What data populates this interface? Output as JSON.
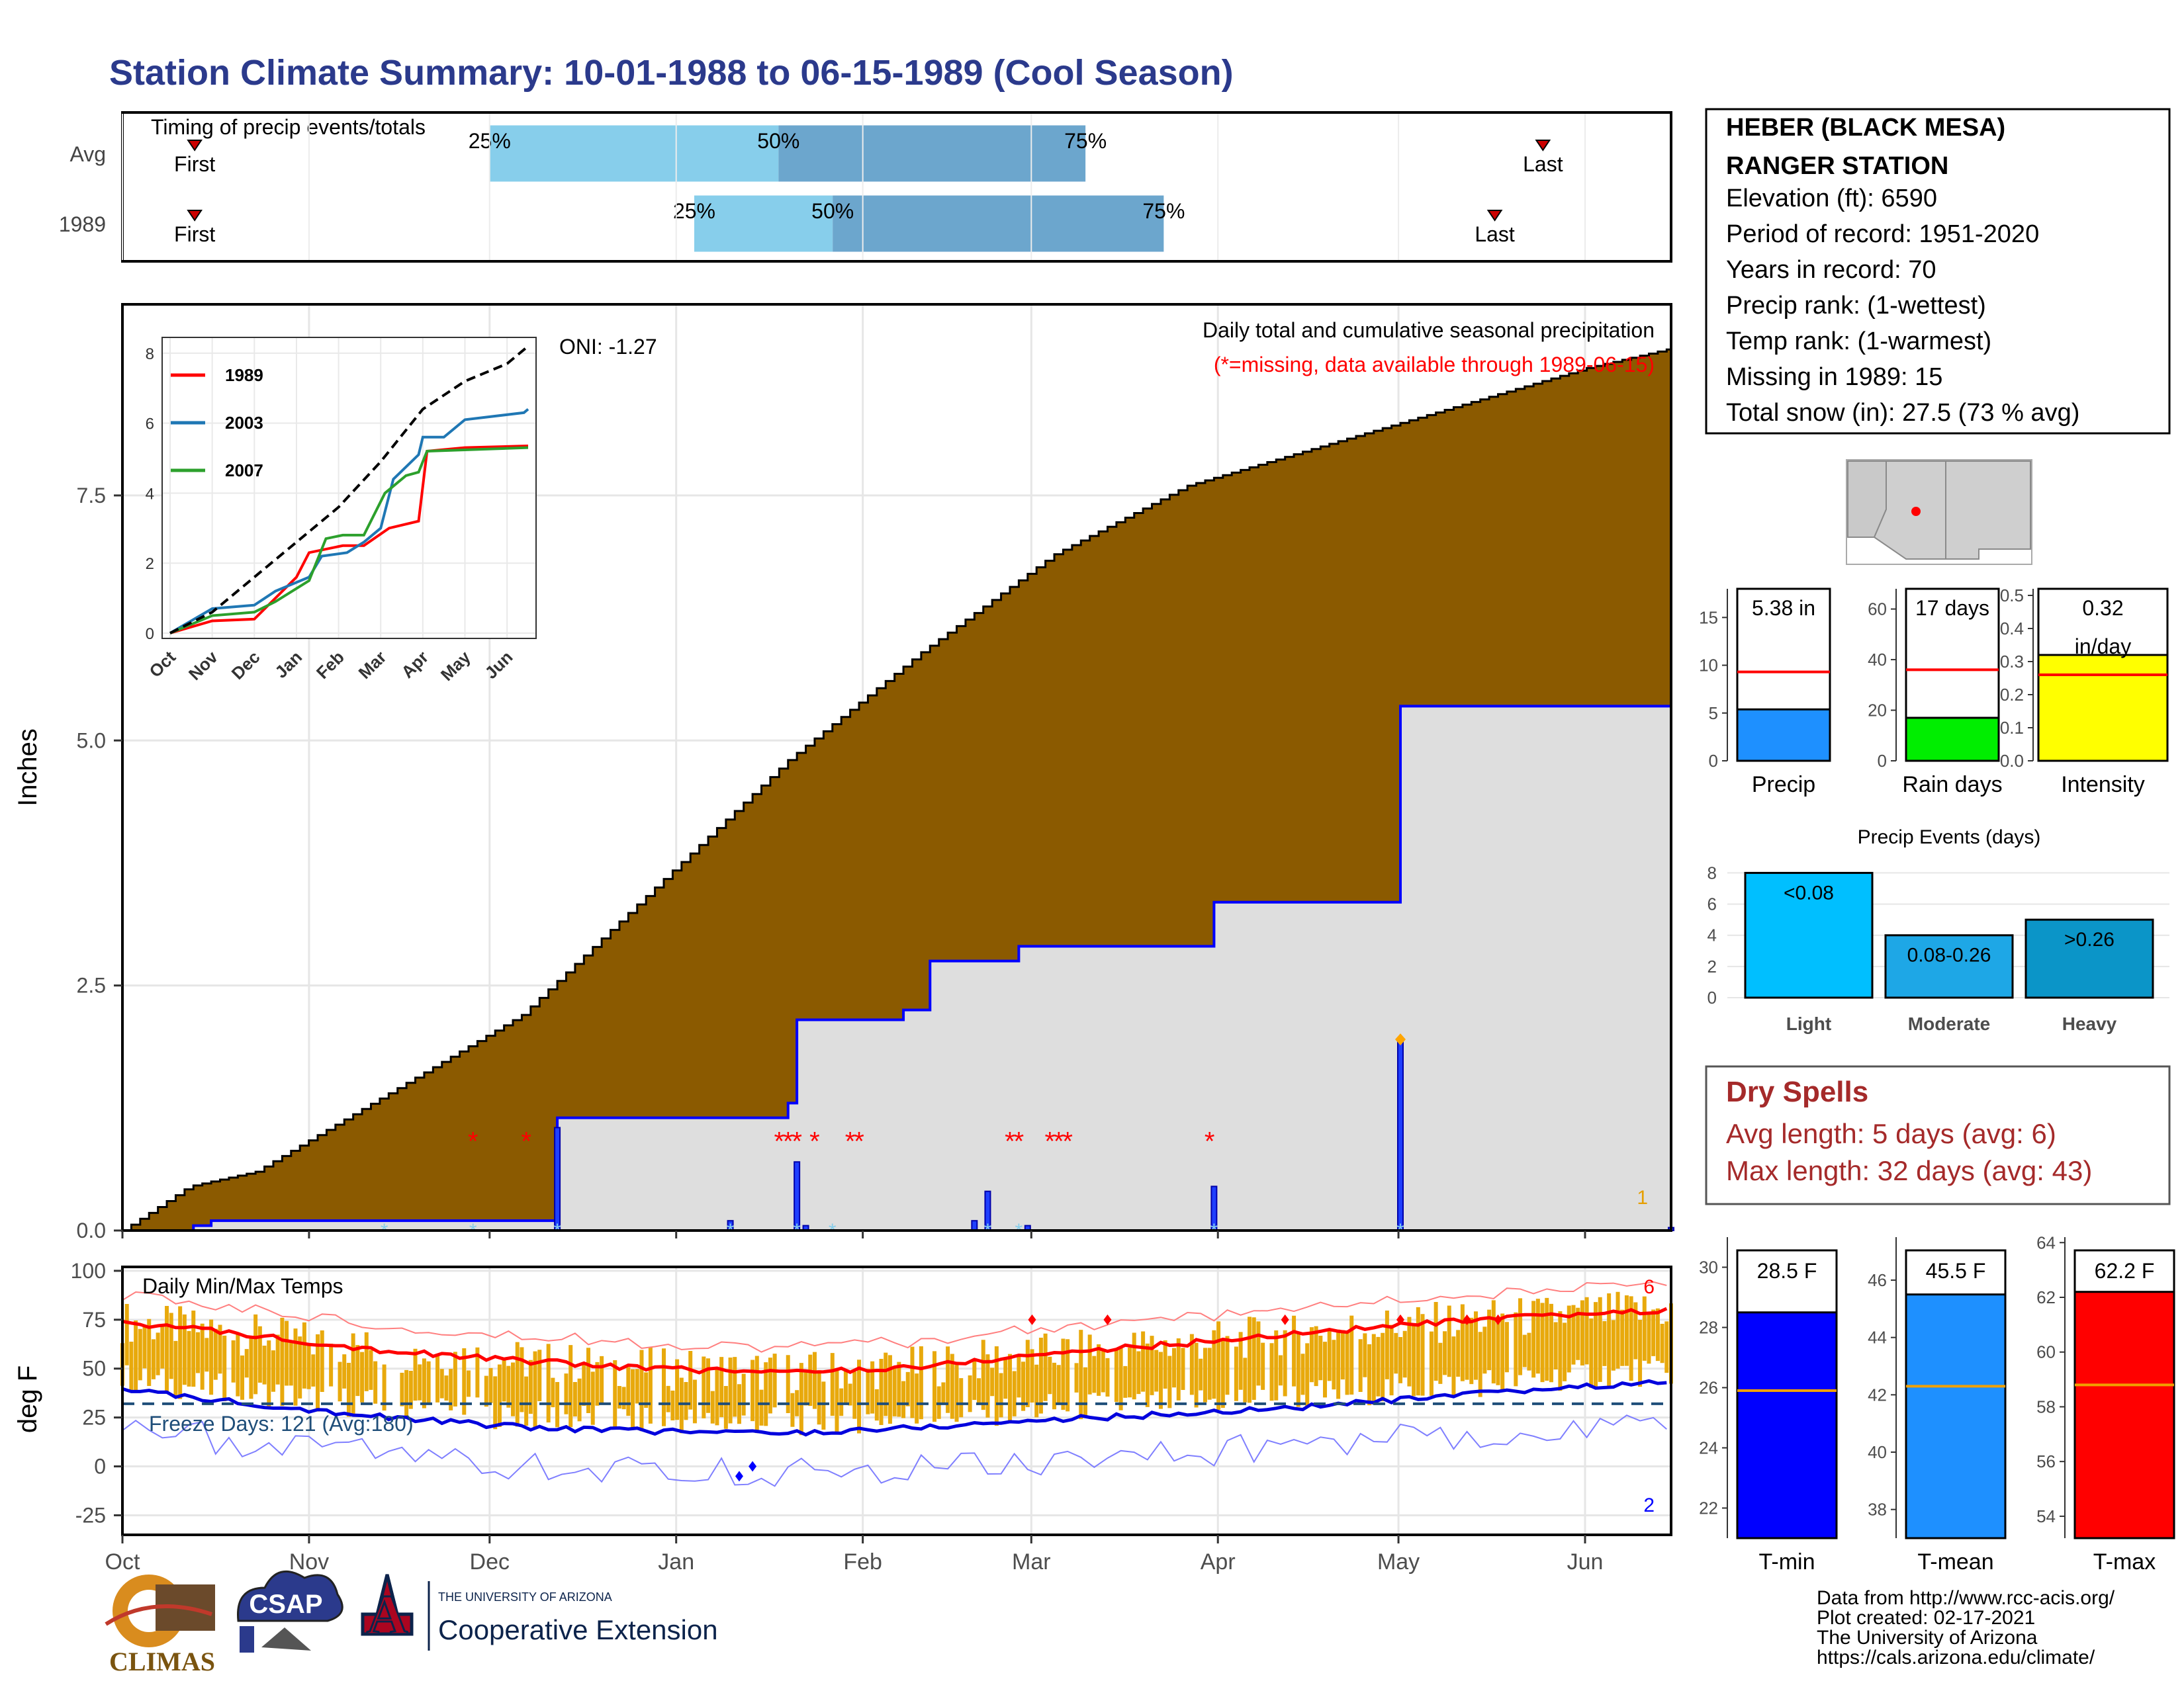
{
  "title": "Station Climate Summary: 10-01-1988 to 06-15-1989 (Cool Season)",
  "timing": {
    "title": "Timing of precip events/totals",
    "rows": [
      {
        "label": "Avg",
        "first_label": "First",
        "last_label": "Last",
        "p25": "25%",
        "p50": "50%",
        "p75": "75%",
        "first": "Oct 13",
        "p25_date": "Dec 1",
        "p50_date": "Jan 18",
        "p75_date": "Mar 10",
        "last": "May 25"
      },
      {
        "label": "1989",
        "first_label": "First",
        "last_label": "Last",
        "p25": "25%",
        "p50": "50%",
        "p75": "75%",
        "first": "Oct 13",
        "p25_date": "Jan 4",
        "p50_date": "Jan 27",
        "p75_date": "Mar 23",
        "last": "May 17"
      }
    ]
  },
  "precip_panel": {
    "ylabel": "Inches",
    "yticks": [
      "0.0",
      "2.5",
      "5.0",
      "7.5"
    ],
    "annotation_title": "Daily total and cumulative seasonal precipitation",
    "annotation_missing": "(*=missing, data available through 1989-06-15)",
    "oni": "ONI: -1.27",
    "corner_count": "1"
  },
  "inset": {
    "yticks": [
      "0",
      "2",
      "4",
      "6",
      "8"
    ],
    "xticks": [
      "Oct",
      "Nov",
      "Dec",
      "Jan",
      "Feb",
      "Mar",
      "Apr",
      "May",
      "Jun"
    ],
    "legend": [
      {
        "name": "1989",
        "color": "#ff0000"
      },
      {
        "name": "2003",
        "color": "#1f77b4"
      },
      {
        "name": "2007",
        "color": "#2ca02c"
      }
    ]
  },
  "temp_panel": {
    "ylabel": "deg F",
    "title": "Daily Min/Max Temps",
    "yticks": [
      "-25",
      "0",
      "25",
      "50",
      "75",
      "100"
    ],
    "freeze_label": "Freeze Days: 121 (Avg:180)",
    "max_count": "6",
    "min_count": "2"
  },
  "months": [
    "Oct",
    "Nov",
    "Dec",
    "Jan",
    "Feb",
    "Mar",
    "Apr",
    "May",
    "Jun"
  ],
  "station": {
    "name_line1": "HEBER (BLACK MESA)",
    "name_line2": "RANGER STATION",
    "elevation": "Elevation (ft): 6590",
    "period": "Period of record: 1951-2020",
    "years": "Years in record: 70",
    "precip_rank": "Precip rank:  (1-wettest)",
    "temp_rank": "Temp rank:  (1-warmest)",
    "missing": "Missing in 1989: 15",
    "snow": "Total snow (in): 27.5 (73 % avg)"
  },
  "mini_bars": [
    {
      "label": "Precip",
      "value_label": "5.38 in",
      "value": 5.38,
      "avg": 9.3,
      "ymax": 18,
      "ticks": [
        "0",
        "5",
        "10",
        "15"
      ],
      "color": "#1e90ff"
    },
    {
      "label": "Rain days",
      "value_label": "17 days",
      "value": 17,
      "avg": 36,
      "ymax": 68,
      "ticks": [
        "0",
        "20",
        "40",
        "60"
      ],
      "color": "#00ee00"
    },
    {
      "label": "Intensity",
      "value_label": "0.32",
      "value_label2": "in/day",
      "value": 0.32,
      "avg": 0.26,
      "ymax": 0.52,
      "ticks": [
        "0.0",
        "0.1",
        "0.2",
        "0.3",
        "0.4",
        "0.5"
      ],
      "color": "#ffff00"
    }
  ],
  "events": {
    "title": "Precip Events (days)",
    "yticks": [
      "0",
      "2",
      "4",
      "6",
      "8"
    ],
    "categories": [
      "Light",
      "Moderate",
      "Heavy"
    ],
    "bar_labels": [
      "<0.08",
      "0.08-0.26",
      ">0.26"
    ],
    "values": [
      8,
      4,
      5
    ],
    "colors": [
      "#00bfff",
      "#1ea7e6",
      "#0b95c8"
    ]
  },
  "dry_spells": {
    "title": "Dry Spells",
    "avg": "Avg length: 5 days (avg: 6)",
    "max": "Max length: 32 days (avg: 43)"
  },
  "temp_bars": [
    {
      "label": "T-min",
      "value_label": "28.5 F",
      "value": 28.5,
      "avg": 25.9,
      "ylim": [
        21,
        31
      ],
      "ticks": [
        "22",
        "24",
        "26",
        "28",
        "30"
      ],
      "color": "#0000ff"
    },
    {
      "label": "T-mean",
      "value_label": "45.5 F",
      "value": 45.5,
      "avg": 42.3,
      "ylim": [
        37,
        47.5
      ],
      "ticks": [
        "38",
        "40",
        "42",
        "44",
        "46"
      ],
      "color": "#1e90ff"
    },
    {
      "label": "T-max",
      "value_label": "62.2 F",
      "value": 62.2,
      "avg": 58.8,
      "ylim": [
        53.2,
        64.2
      ],
      "ticks": [
        "54",
        "56",
        "58",
        "60",
        "62",
        "64"
      ],
      "color": "#ff0000"
    }
  ],
  "footer": {
    "line1": "Data from http://www.rcc-acis.org/",
    "line2": "Plot created: 02-17-2021",
    "line3": "The University of Arizona",
    "line4": "https://cals.arizona.edu/climate/",
    "climas": "CLIMAS",
    "csap": "CSAP",
    "ua_small": "THE UNIVERSITY OF ARIZONA",
    "ua_big": "Cooperative Extension"
  },
  "chart_data": [
    {
      "type": "area",
      "title": "Daily total and cumulative seasonal precipitation",
      "ylabel": "Inches",
      "ylim": [
        0,
        9.5
      ],
      "cumulative_avg": [
        [
          0,
          0
        ],
        [
          15,
          0.45
        ],
        [
          30,
          0.6
        ],
        [
          60,
          1.4
        ],
        [
          90,
          2.2
        ],
        [
          120,
          3.5
        ],
        [
          150,
          4.8
        ],
        [
          180,
          5.9
        ],
        [
          210,
          6.9
        ],
        [
          240,
          7.6
        ],
        [
          270,
          8.0
        ],
        [
          300,
          8.4
        ],
        [
          330,
          8.8
        ],
        [
          349,
          9.0
        ]
      ],
      "cumulative_1989": [
        [
          0,
          0
        ],
        [
          16,
          0.05
        ],
        [
          20,
          0.1
        ],
        [
          95,
          0.1
        ],
        [
          98,
          1.15
        ],
        [
          150,
          1.3
        ],
        [
          152,
          2.15
        ],
        [
          176,
          2.25
        ],
        [
          182,
          2.75
        ],
        [
          202,
          2.9
        ],
        [
          246,
          3.35
        ],
        [
          288,
          5.35
        ],
        [
          385,
          5.38
        ]
      ],
      "daily_1989": [
        [
          98,
          1.05
        ],
        [
          137,
          0.1
        ],
        [
          152,
          0.7
        ],
        [
          154,
          0.05
        ],
        [
          192,
          0.1
        ],
        [
          195,
          0.4
        ],
        [
          204,
          0.05
        ],
        [
          246,
          0.45
        ],
        [
          288,
          1.95
        ],
        [
          385,
          0.03
        ]
      ],
      "missing_days": [
        79,
        91,
        148,
        150,
        152,
        156,
        164,
        166,
        200,
        202,
        209,
        211,
        213,
        245
      ]
    },
    {
      "type": "line",
      "title": "Daily Min/Max Temps",
      "ylabel": "deg F",
      "ylim": [
        -35,
        102
      ],
      "series": [
        {
          "name": "Avg max",
          "values": [
            [
              0,
              74
            ],
            [
              30,
              67
            ],
            [
              60,
              59
            ],
            [
              90,
              54
            ],
            [
              120,
              50
            ],
            [
              150,
              48
            ],
            [
              180,
              51
            ],
            [
              210,
              58
            ],
            [
              240,
              63
            ],
            [
              270,
              69
            ],
            [
              300,
              74
            ],
            [
              330,
              78
            ],
            [
              349,
              80
            ]
          ]
        },
        {
          "name": "Avg min",
          "values": [
            [
              0,
              39
            ],
            [
              30,
              32
            ],
            [
              60,
              25
            ],
            [
              90,
              20
            ],
            [
              120,
              18
            ],
            [
              150,
              17
            ],
            [
              180,
              20
            ],
            [
              210,
              24
            ],
            [
              240,
              27
            ],
            [
              270,
              31
            ],
            [
              300,
              36
            ],
            [
              330,
              41
            ],
            [
              349,
              43
            ]
          ]
        }
      ]
    },
    {
      "type": "line",
      "inset": true,
      "xticks": [
        "Oct",
        "Nov",
        "Dec",
        "Jan",
        "Feb",
        "Mar",
        "Apr",
        "May",
        "Jun"
      ],
      "ylim": [
        0,
        8.3
      ],
      "series": [
        {
          "name": "1989",
          "values": [
            [
              0,
              0
            ],
            [
              1,
              0.35
            ],
            [
              2,
              0.4
            ],
            [
              2.5,
              1.0
            ],
            [
              3,
              1.6
            ],
            [
              3.3,
              2.3
            ],
            [
              4.1,
              2.5
            ],
            [
              4.6,
              2.5
            ],
            [
              5.2,
              3.0
            ],
            [
              5.9,
              3.2
            ],
            [
              6.1,
              5.2
            ],
            [
              7,
              5.3
            ],
            [
              8.5,
              5.35
            ]
          ]
        },
        {
          "name": "2003",
          "values": [
            [
              0,
              0
            ],
            [
              1,
              0.7
            ],
            [
              2,
              0.8
            ],
            [
              2.5,
              1.2
            ],
            [
              3.3,
              1.6
            ],
            [
              3.6,
              2.2
            ],
            [
              4.2,
              2.3
            ],
            [
              4.6,
              2.6
            ],
            [
              5.0,
              3.0
            ],
            [
              5.3,
              4.4
            ],
            [
              5.9,
              5.1
            ],
            [
              6.0,
              5.6
            ],
            [
              6.5,
              5.6
            ],
            [
              7.0,
              6.1
            ],
            [
              8.4,
              6.3
            ],
            [
              8.5,
              6.4
            ]
          ]
        },
        {
          "name": "2007",
          "values": [
            [
              0,
              0
            ],
            [
              1,
              0.5
            ],
            [
              2,
              0.6
            ],
            [
              2.5,
              0.9
            ],
            [
              3.3,
              1.5
            ],
            [
              3.7,
              2.7
            ],
            [
              4.1,
              2.8
            ],
            [
              4.6,
              2.8
            ],
            [
              5.1,
              4.0
            ],
            [
              5.6,
              4.5
            ],
            [
              5.9,
              4.6
            ],
            [
              6.1,
              5.2
            ],
            [
              8.5,
              5.3
            ]
          ]
        },
        {
          "name": "Avg",
          "values": [
            [
              0,
              0
            ],
            [
              1,
              0.6
            ],
            [
              2,
              1.6
            ],
            [
              3,
              2.6
            ],
            [
              4,
              3.6
            ],
            [
              5,
              4.9
            ],
            [
              6,
              6.4
            ],
            [
              7,
              7.2
            ],
            [
              8,
              7.7
            ],
            [
              8.5,
              8.2
            ]
          ]
        }
      ]
    }
  ]
}
